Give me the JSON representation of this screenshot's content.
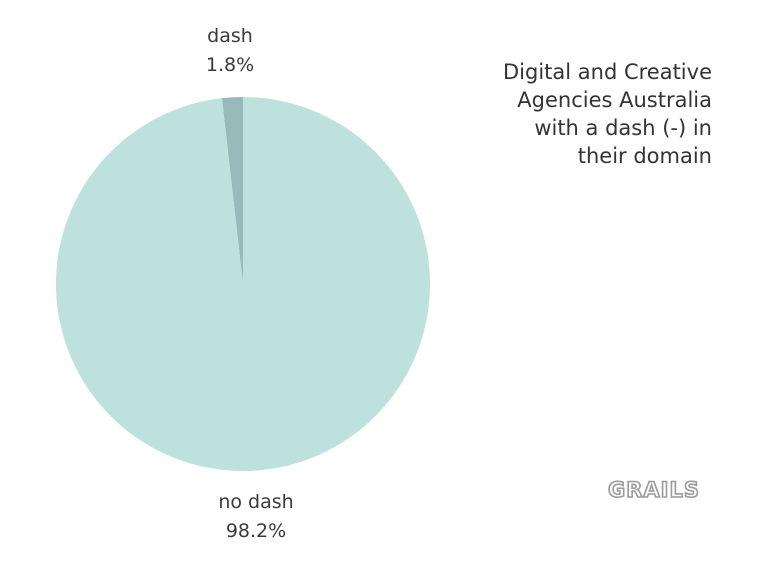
{
  "chart_data": {
    "type": "pie",
    "title": "Digital and Creative\nAgencies Australia\nwith a dash (-) in\ntheir domain",
    "slices": [
      {
        "label": "dash",
        "value": 1.8,
        "value_label": "1.8%",
        "color": "#98babb"
      },
      {
        "label": "no dash",
        "value": 98.2,
        "value_label": "98.2%",
        "color": "#bde2dd"
      }
    ],
    "start_angle_deg": 0,
    "direction": "counterclockwise",
    "legend": "none"
  },
  "watermark": {
    "text": "GRAILS",
    "fill": "#ffffff",
    "stroke": "#9a9a9a"
  }
}
